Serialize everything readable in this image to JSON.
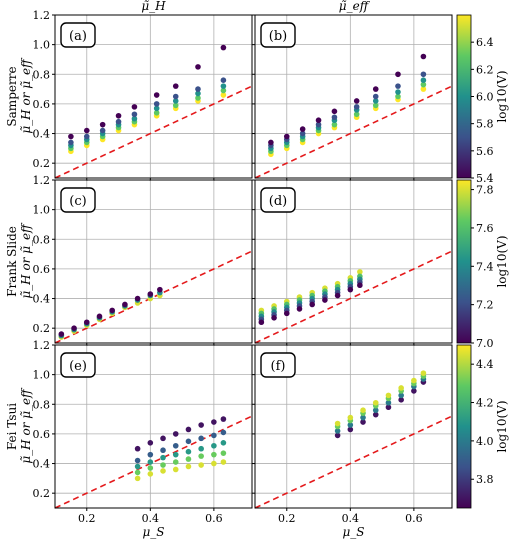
{
  "chart_data": {
    "type": "scatter",
    "columns": [
      {
        "title": "μ̃_H"
      },
      {
        "title": "μ̃_eff"
      }
    ],
    "xlabel": "μ_S",
    "x_ticks": [
      0.2,
      0.4,
      0.6
    ],
    "xlim": [
      0.1,
      0.72
    ],
    "ylim": [
      0.1,
      1.2
    ],
    "y_ticks": [
      0.2,
      0.4,
      0.6,
      0.8,
      1.0,
      1.2
    ],
    "x_tick_labels": [
      "0.2",
      "0.4",
      "0.6"
    ],
    "y_tick_labels": [
      "0.2",
      "0.4",
      "0.6",
      "0.8",
      "1.0",
      "1.2"
    ],
    "grid": true,
    "reference_line": {
      "name": "y = x",
      "color": "#e41a1c",
      "style": "dashed"
    },
    "colormap": [
      "#440154",
      "#3b528b",
      "#21918c",
      "#5ec962",
      "#fde725"
    ],
    "rows": [
      {
        "ylabel_top": "Samperre",
        "ylabel_bottom": "μ̃_H or μ̃_eff",
        "colorbar": {
          "label": "log10(V)",
          "min": 5.4,
          "max": 6.6,
          "ticks": [
            "5.4",
            "5.6",
            "5.8",
            "6.0",
            "6.2",
            "6.4"
          ],
          "tick_values": [
            5.4,
            5.6,
            5.8,
            6.0,
            6.2,
            6.4
          ]
        },
        "panels": [
          {
            "label": "(a)",
            "series": [
              {
                "x": [
                  0.15,
                  0.2,
                  0.25,
                  0.3,
                  0.35,
                  0.42,
                  0.48,
                  0.55,
                  0.63
                ],
                "y": [
                  0.28,
                  0.32,
                  0.36,
                  0.42,
                  0.46,
                  0.52,
                  0.57,
                  0.62,
                  0.66
                ],
                "cval": 6.6
              },
              {
                "x": [
                  0.15,
                  0.2,
                  0.25,
                  0.3,
                  0.35,
                  0.42,
                  0.48,
                  0.55,
                  0.63
                ],
                "y": [
                  0.3,
                  0.34,
                  0.38,
                  0.44,
                  0.48,
                  0.54,
                  0.59,
                  0.64,
                  0.69
                ],
                "cval": 6.3
              },
              {
                "x": [
                  0.15,
                  0.2,
                  0.25,
                  0.3,
                  0.35,
                  0.42,
                  0.48,
                  0.55,
                  0.63
                ],
                "y": [
                  0.32,
                  0.36,
                  0.4,
                  0.46,
                  0.5,
                  0.57,
                  0.62,
                  0.67,
                  0.72
                ],
                "cval": 6.0
              },
              {
                "x": [
                  0.15,
                  0.2,
                  0.25,
                  0.3,
                  0.35,
                  0.42,
                  0.48,
                  0.55,
                  0.63
                ],
                "y": [
                  0.34,
                  0.38,
                  0.42,
                  0.48,
                  0.53,
                  0.6,
                  0.65,
                  0.7,
                  0.76
                ],
                "cval": 5.7
              },
              {
                "x": [
                  0.15,
                  0.2,
                  0.25,
                  0.3,
                  0.35,
                  0.42,
                  0.48,
                  0.55,
                  0.63
                ],
                "y": [
                  0.38,
                  0.42,
                  0.46,
                  0.52,
                  0.58,
                  0.66,
                  0.72,
                  0.85,
                  0.98
                ],
                "cval": 5.4
              }
            ]
          },
          {
            "label": "(b)",
            "series": [
              {
                "x": [
                  0.15,
                  0.2,
                  0.25,
                  0.3,
                  0.35,
                  0.42,
                  0.48,
                  0.55,
                  0.63
                ],
                "y": [
                  0.26,
                  0.3,
                  0.34,
                  0.4,
                  0.44,
                  0.51,
                  0.57,
                  0.63,
                  0.7
                ],
                "cval": 6.6
              },
              {
                "x": [
                  0.15,
                  0.2,
                  0.25,
                  0.3,
                  0.35,
                  0.42,
                  0.48,
                  0.55,
                  0.63
                ],
                "y": [
                  0.28,
                  0.32,
                  0.36,
                  0.42,
                  0.46,
                  0.53,
                  0.59,
                  0.65,
                  0.73
                ],
                "cval": 6.3
              },
              {
                "x": [
                  0.15,
                  0.2,
                  0.25,
                  0.3,
                  0.35,
                  0.42,
                  0.48,
                  0.55,
                  0.63
                ],
                "y": [
                  0.3,
                  0.34,
                  0.38,
                  0.44,
                  0.49,
                  0.56,
                  0.62,
                  0.68,
                  0.76
                ],
                "cval": 6.0
              },
              {
                "x": [
                  0.15,
                  0.2,
                  0.25,
                  0.3,
                  0.35,
                  0.42,
                  0.48,
                  0.55,
                  0.63
                ],
                "y": [
                  0.32,
                  0.36,
                  0.4,
                  0.46,
                  0.51,
                  0.58,
                  0.65,
                  0.72,
                  0.8
                ],
                "cval": 5.7
              },
              {
                "x": [
                  0.15,
                  0.2,
                  0.25,
                  0.3,
                  0.35,
                  0.42,
                  0.48,
                  0.55,
                  0.63
                ],
                "y": [
                  0.34,
                  0.38,
                  0.43,
                  0.49,
                  0.55,
                  0.62,
                  0.7,
                  0.8,
                  0.92
                ],
                "cval": 5.4
              }
            ]
          }
        ]
      },
      {
        "ylabel_top": "Frank Slide",
        "ylabel_bottom": "μ̃_H or μ̃_eff",
        "colorbar": {
          "label": "log10(V)",
          "min": 7.0,
          "max": 7.85,
          "ticks": [
            "7.0",
            "7.2",
            "7.4",
            "7.6",
            "7.8"
          ],
          "tick_values": [
            7.0,
            7.2,
            7.4,
            7.6,
            7.8
          ]
        },
        "panels": [
          {
            "label": "(c)",
            "series": [
              {
                "x": [
                  0.12,
                  0.16,
                  0.2,
                  0.24,
                  0.28,
                  0.32,
                  0.36,
                  0.4,
                  0.43
                ],
                "y": [
                  0.14,
                  0.18,
                  0.22,
                  0.26,
                  0.3,
                  0.34,
                  0.37,
                  0.4,
                  0.42
                ],
                "cval": 7.8
              },
              {
                "x": [
                  0.12,
                  0.16,
                  0.2,
                  0.24,
                  0.28,
                  0.32,
                  0.36,
                  0.4,
                  0.43
                ],
                "y": [
                  0.15,
                  0.19,
                  0.23,
                  0.27,
                  0.31,
                  0.35,
                  0.39,
                  0.42,
                  0.44
                ],
                "cval": 7.4
              },
              {
                "x": [
                  0.12,
                  0.16,
                  0.2,
                  0.24,
                  0.28,
                  0.32,
                  0.36,
                  0.4,
                  0.43
                ],
                "y": [
                  0.16,
                  0.2,
                  0.24,
                  0.28,
                  0.32,
                  0.36,
                  0.4,
                  0.43,
                  0.46
                ],
                "cval": 7.0
              }
            ]
          },
          {
            "label": "(d)",
            "series": [
              {
                "x": [
                  0.12,
                  0.16,
                  0.2,
                  0.24,
                  0.28,
                  0.32,
                  0.36,
                  0.4,
                  0.43
                ],
                "y": [
                  0.32,
                  0.35,
                  0.38,
                  0.41,
                  0.44,
                  0.47,
                  0.5,
                  0.54,
                  0.58
                ],
                "cval": 7.8
              },
              {
                "x": [
                  0.12,
                  0.16,
                  0.2,
                  0.24,
                  0.28,
                  0.32,
                  0.36,
                  0.4,
                  0.43
                ],
                "y": [
                  0.3,
                  0.33,
                  0.36,
                  0.39,
                  0.42,
                  0.45,
                  0.48,
                  0.52,
                  0.55
                ],
                "cval": 7.6
              },
              {
                "x": [
                  0.12,
                  0.16,
                  0.2,
                  0.24,
                  0.28,
                  0.32,
                  0.36,
                  0.4,
                  0.43
                ],
                "y": [
                  0.28,
                  0.31,
                  0.34,
                  0.37,
                  0.4,
                  0.43,
                  0.46,
                  0.5,
                  0.53
                ],
                "cval": 7.4
              },
              {
                "x": [
                  0.12,
                  0.16,
                  0.2,
                  0.24,
                  0.28,
                  0.32,
                  0.36,
                  0.4,
                  0.43
                ],
                "y": [
                  0.26,
                  0.29,
                  0.32,
                  0.35,
                  0.38,
                  0.41,
                  0.44,
                  0.48,
                  0.51
                ],
                "cval": 7.2
              },
              {
                "x": [
                  0.12,
                  0.16,
                  0.2,
                  0.24,
                  0.28,
                  0.32,
                  0.36,
                  0.4,
                  0.43
                ],
                "y": [
                  0.24,
                  0.27,
                  0.3,
                  0.33,
                  0.36,
                  0.39,
                  0.42,
                  0.46,
                  0.49
                ],
                "cval": 7.0
              }
            ]
          }
        ]
      },
      {
        "ylabel_top": "Fei Tsui",
        "ylabel_bottom": "μ̃_H or μ̃_eff",
        "colorbar": {
          "label": "log10(V)",
          "min": 3.65,
          "max": 4.5,
          "ticks": [
            "3.8",
            "4.0",
            "4.2",
            "4.4"
          ],
          "tick_values": [
            3.8,
            4.0,
            4.2,
            4.4
          ]
        },
        "panels": [
          {
            "label": "(e)",
            "series": [
              {
                "x": [
                  0.36,
                  0.4,
                  0.44,
                  0.48,
                  0.52,
                  0.56,
                  0.6,
                  0.63
                ],
                "y": [
                  0.5,
                  0.54,
                  0.57,
                  0.6,
                  0.63,
                  0.66,
                  0.68,
                  0.7
                ],
                "cval": 3.7
              },
              {
                "x": [
                  0.36,
                  0.4,
                  0.44,
                  0.48,
                  0.52,
                  0.56,
                  0.6,
                  0.63
                ],
                "y": [
                  0.42,
                  0.46,
                  0.49,
                  0.52,
                  0.55,
                  0.57,
                  0.59,
                  0.61
                ],
                "cval": 3.9
              },
              {
                "x": [
                  0.36,
                  0.4,
                  0.44,
                  0.48,
                  0.52,
                  0.56,
                  0.6,
                  0.63
                ],
                "y": [
                  0.38,
                  0.41,
                  0.44,
                  0.46,
                  0.48,
                  0.5,
                  0.52,
                  0.54
                ],
                "cval": 4.1
              },
              {
                "x": [
                  0.36,
                  0.4,
                  0.44,
                  0.48,
                  0.52,
                  0.56,
                  0.6,
                  0.63
                ],
                "y": [
                  0.34,
                  0.37,
                  0.39,
                  0.41,
                  0.43,
                  0.45,
                  0.46,
                  0.47
                ],
                "cval": 4.3
              },
              {
                "x": [
                  0.36,
                  0.4,
                  0.44,
                  0.48,
                  0.52,
                  0.56,
                  0.6,
                  0.63
                ],
                "y": [
                  0.3,
                  0.33,
                  0.35,
                  0.36,
                  0.38,
                  0.39,
                  0.4,
                  0.41
                ],
                "cval": 4.45
              }
            ]
          },
          {
            "label": "(f)",
            "series": [
              {
                "x": [
                  0.36,
                  0.4,
                  0.44,
                  0.48,
                  0.52,
                  0.56,
                  0.6,
                  0.63
                ],
                "y": [
                  0.59,
                  0.63,
                  0.68,
                  0.73,
                  0.78,
                  0.83,
                  0.89,
                  0.95
                ],
                "cval": 3.7
              },
              {
                "x": [
                  0.36,
                  0.4,
                  0.44,
                  0.48,
                  0.52,
                  0.56,
                  0.6,
                  0.63
                ],
                "y": [
                  0.62,
                  0.66,
                  0.71,
                  0.76,
                  0.81,
                  0.86,
                  0.92,
                  0.97
                ],
                "cval": 4.0
              },
              {
                "x": [
                  0.36,
                  0.4,
                  0.44,
                  0.48,
                  0.52,
                  0.56,
                  0.6,
                  0.63
                ],
                "y": [
                  0.65,
                  0.69,
                  0.74,
                  0.79,
                  0.84,
                  0.89,
                  0.94,
                  0.99
                ],
                "cval": 4.3
              },
              {
                "x": [
                  0.36,
                  0.4,
                  0.44,
                  0.48,
                  0.52,
                  0.56,
                  0.6,
                  0.63
                ],
                "y": [
                  0.67,
                  0.71,
                  0.76,
                  0.81,
                  0.86,
                  0.91,
                  0.96,
                  1.01
                ],
                "cval": 4.45
              }
            ]
          }
        ]
      }
    ]
  }
}
